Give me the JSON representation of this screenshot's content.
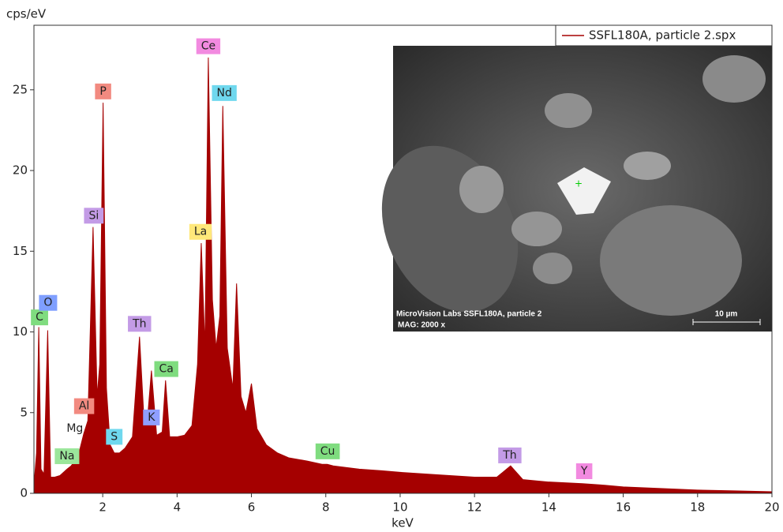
{
  "chart_data": {
    "type": "area",
    "y_axis_label": "cps/eV",
    "x_axis_label": "keV",
    "xlim": [
      0.15,
      20
    ],
    "ylim": [
      0,
      29
    ],
    "xticks": [
      2,
      4,
      6,
      8,
      10,
      12,
      14,
      16,
      18,
      20
    ],
    "yticks": [
      0,
      5,
      10,
      15,
      20,
      25
    ],
    "series": [
      {
        "name": "SSFL180A, particle 2.spx",
        "color": "#a50000",
        "x": [
          0.15,
          0.22,
          0.28,
          0.34,
          0.42,
          0.52,
          0.6,
          0.7,
          0.85,
          1.04,
          1.15,
          1.25,
          1.35,
          1.49,
          1.6,
          1.74,
          1.85,
          1.92,
          2.01,
          2.1,
          2.2,
          2.31,
          2.45,
          2.6,
          2.8,
          2.99,
          3.1,
          3.2,
          3.31,
          3.45,
          3.6,
          3.69,
          3.8,
          4.0,
          4.2,
          4.4,
          4.55,
          4.65,
          4.75,
          4.84,
          4.95,
          5.05,
          5.15,
          5.23,
          5.35,
          5.5,
          5.6,
          5.72,
          5.85,
          6.0,
          6.15,
          6.4,
          6.7,
          7.0,
          7.5,
          7.9,
          8.04,
          8.2,
          8.9,
          9.5,
          10.0,
          11.0,
          12.0,
          12.6,
          12.97,
          13.3,
          14.0,
          14.9,
          15.5,
          16.0,
          17.0,
          18.0,
          19.0,
          20.0
        ],
        "values": [
          0.5,
          2.5,
          10.3,
          1.5,
          1.2,
          10.1,
          1.0,
          1.0,
          1.1,
          1.5,
          1.7,
          2.0,
          2.4,
          3.7,
          4.5,
          16.5,
          6.0,
          8.0,
          24.2,
          6.5,
          3.0,
          2.5,
          2.5,
          2.8,
          3.5,
          9.7,
          5.0,
          4.5,
          7.6,
          3.6,
          3.8,
          7.0,
          3.5,
          3.5,
          3.6,
          4.2,
          8.0,
          15.5,
          9.0,
          27.0,
          12.0,
          9.0,
          11.0,
          24.0,
          9.0,
          6.5,
          13.0,
          6.0,
          5.0,
          6.8,
          4.0,
          3.0,
          2.5,
          2.2,
          2.0,
          1.8,
          1.8,
          1.7,
          1.5,
          1.4,
          1.3,
          1.15,
          1.0,
          1.0,
          1.7,
          0.85,
          0.7,
          0.6,
          0.5,
          0.4,
          0.3,
          0.2,
          0.15,
          0.1
        ]
      }
    ],
    "annotations": [
      {
        "text": "C",
        "x": 0.3,
        "y": 10.9,
        "color": "#7fdc7f"
      },
      {
        "text": "O",
        "x": 0.53,
        "y": 11.8,
        "color": "#7f9fff"
      },
      {
        "text": "Na",
        "x": 1.04,
        "y": 2.3,
        "color": "#9be69b"
      },
      {
        "text": "Mg",
        "x": 1.25,
        "y": 4.0
      },
      {
        "text": "Al",
        "x": 1.5,
        "y": 5.4,
        "color": "#f28a80"
      },
      {
        "text": "Si",
        "x": 1.76,
        "y": 17.2,
        "color": "#c39be6"
      },
      {
        "text": "P",
        "x": 2.01,
        "y": 24.9,
        "color": "#f28a80"
      },
      {
        "text": "S",
        "x": 2.31,
        "y": 3.5,
        "color": "#6fd8ee"
      },
      {
        "text": "Th",
        "x": 2.99,
        "y": 10.5,
        "color": "#c39be6"
      },
      {
        "text": "K",
        "x": 3.31,
        "y": 4.7,
        "color": "#8f9fff"
      },
      {
        "text": "Ca",
        "x": 3.71,
        "y": 7.7,
        "color": "#7fdc7f"
      },
      {
        "text": "La",
        "x": 4.63,
        "y": 16.2,
        "color": "#ffe87a"
      },
      {
        "text": "Ce",
        "x": 4.84,
        "y": 27.7,
        "color": "#f28ae0"
      },
      {
        "text": "Nd",
        "x": 5.27,
        "y": 24.8,
        "color": "#6fd8ee"
      },
      {
        "text": "Cu",
        "x": 8.05,
        "y": 2.6,
        "color": "#7fdc7f"
      },
      {
        "text": "Th",
        "x": 12.95,
        "y": 2.35,
        "color": "#c39be6"
      },
      {
        "text": "Y",
        "x": 14.95,
        "y": 1.37,
        "color": "#f28ae0"
      }
    ],
    "image_caption": "MicroVision Labs  SSFL180A, particle 2",
    "image_magnification": "MAG: 2000 x",
    "scale_bar": "10 µm"
  }
}
